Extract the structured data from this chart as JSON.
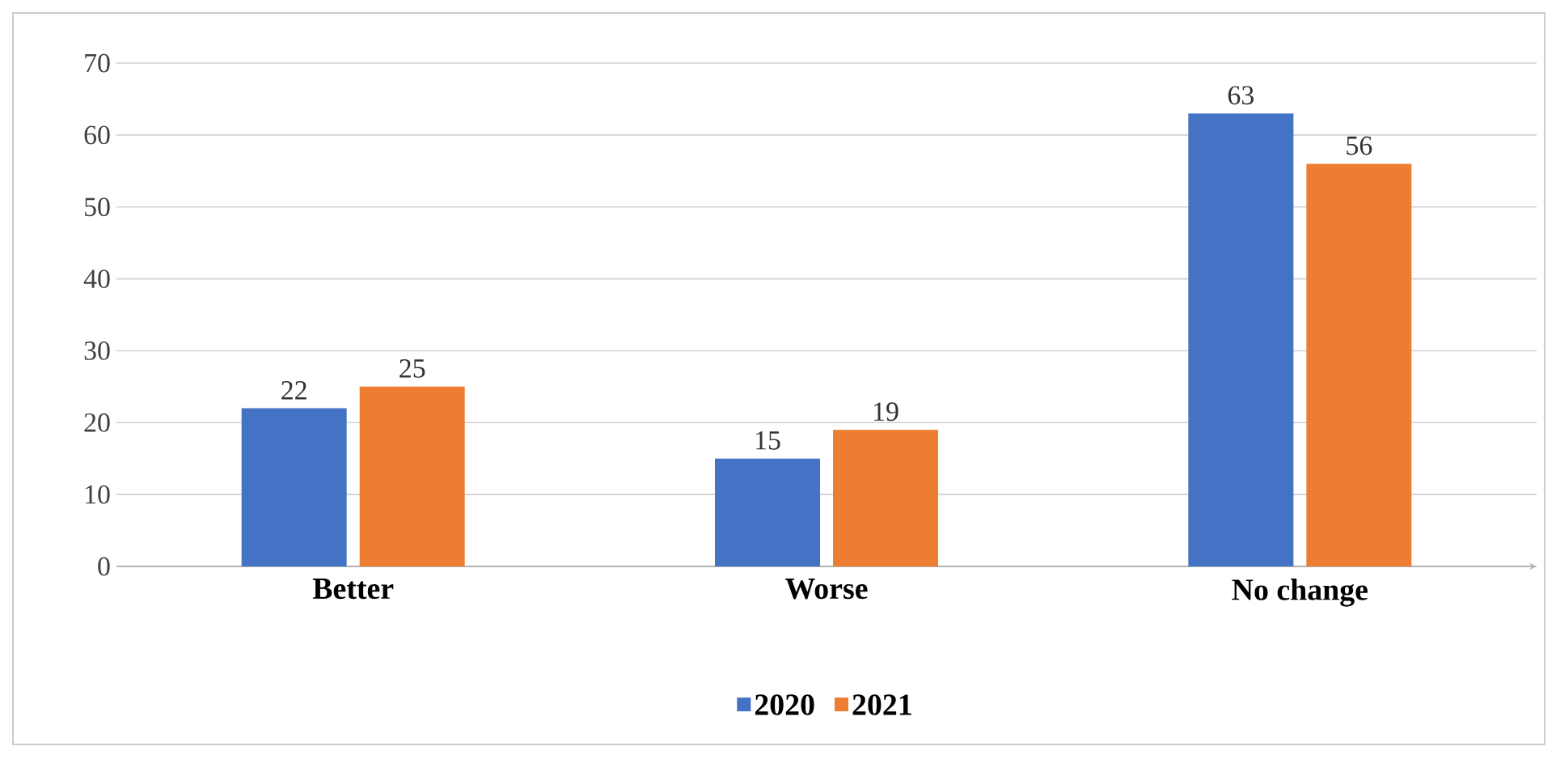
{
  "chart_data": {
    "type": "bar",
    "categories": [
      "Better",
      "Worse",
      "No change"
    ],
    "series": [
      {
        "name": "2020",
        "color": "#4472c4",
        "values": [
          22,
          15,
          63
        ]
      },
      {
        "name": "2021",
        "color": "#ed7d31",
        "values": [
          25,
          19,
          56
        ]
      }
    ],
    "ylim": [
      0,
      70
    ],
    "yticks": [
      0,
      10,
      20,
      30,
      40,
      50,
      60,
      70
    ],
    "grid": "y",
    "legend": "bottom",
    "data_labels": true
  }
}
